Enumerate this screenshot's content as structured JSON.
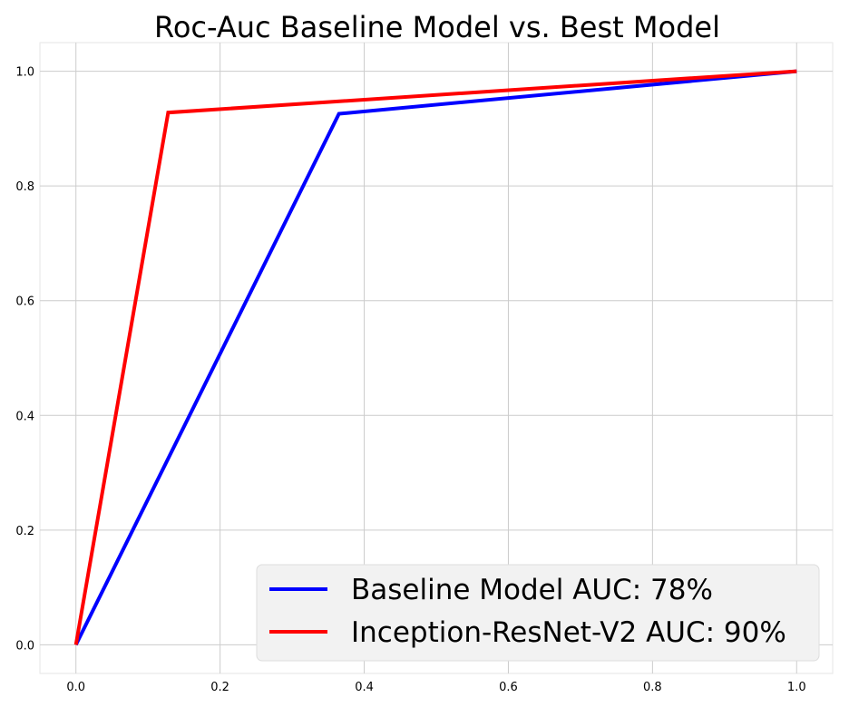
{
  "chart_data": {
    "type": "line",
    "title": "Roc-Auc Baseline Model vs. Best Model",
    "xlabel": "",
    "ylabel": "",
    "xlim": [
      -0.05,
      1.05
    ],
    "ylim": [
      -0.05,
      1.05
    ],
    "x_ticks": [
      "0.0",
      "0.2",
      "0.4",
      "0.6",
      "0.8",
      "1.0"
    ],
    "y_ticks": [
      "0.0",
      "0.2",
      "0.4",
      "0.6",
      "0.8",
      "1.0"
    ],
    "grid": true,
    "legend_position": "lower-right",
    "series": [
      {
        "name": "Baseline Model AUC: 78%",
        "color": "#0000ff",
        "x": [
          0.0,
          0.365,
          1.0
        ],
        "y": [
          0.0,
          0.926,
          1.0
        ]
      },
      {
        "name": "Inception-ResNet-V2 AUC: 90%",
        "color": "#ff0000",
        "x": [
          0.0,
          0.128,
          1.0
        ],
        "y": [
          0.0,
          0.928,
          1.0
        ]
      }
    ]
  }
}
